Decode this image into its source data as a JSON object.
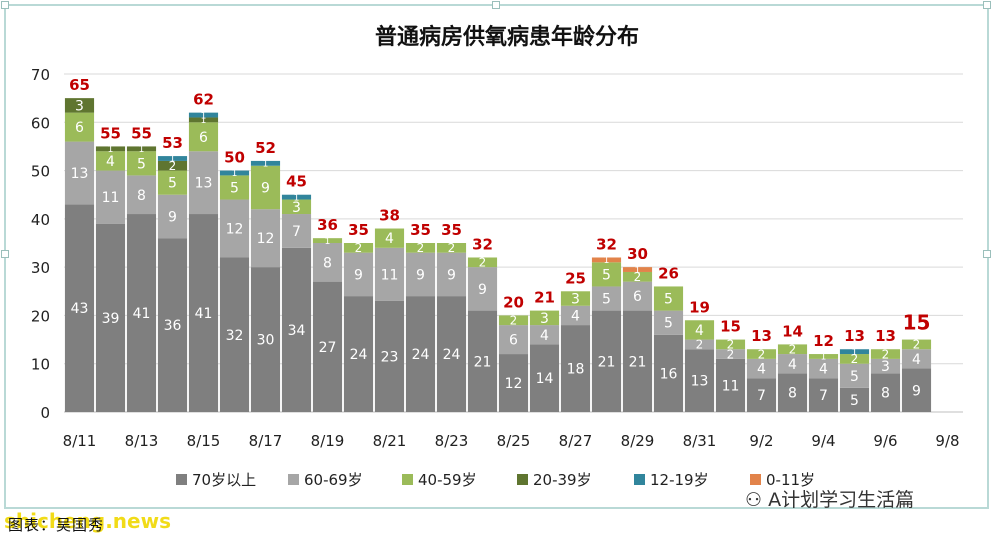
{
  "chart_data": {
    "type": "bar",
    "stacked": true,
    "title": "普通病房供氧病患年龄分布",
    "xlabel": "",
    "ylabel": "",
    "ylim": [
      0,
      70
    ],
    "yticks": [
      0,
      10,
      20,
      30,
      40,
      50,
      60,
      70
    ],
    "grid": true,
    "legend_position": "bottom",
    "categories": [
      "8/11",
      "8/12",
      "8/13",
      "8/14",
      "8/15",
      "8/16",
      "8/17",
      "8/18",
      "8/19",
      "8/20",
      "8/21",
      "8/22",
      "8/23",
      "8/24",
      "8/25",
      "8/26",
      "8/27",
      "8/28",
      "8/29",
      "8/30",
      "8/31",
      "9/1",
      "9/2",
      "9/3",
      "9/4",
      "9/5",
      "9/6",
      "9/7",
      "9/8"
    ],
    "tick_labels": [
      "8/11",
      "",
      "8/13",
      "",
      "8/15",
      "",
      "8/17",
      "",
      "8/19",
      "",
      "8/21",
      "",
      "8/23",
      "",
      "8/25",
      "",
      "8/27",
      "",
      "8/29",
      "",
      "8/31",
      "",
      "9/2",
      "",
      "9/4",
      "",
      "9/6",
      "",
      "9/8"
    ],
    "series": [
      {
        "name": "70岁以上",
        "color": "#7f7f7f",
        "label_color": "#ffffff",
        "values": [
          43,
          39,
          41,
          36,
          41,
          32,
          30,
          34,
          27,
          24,
          23,
          24,
          24,
          21,
          12,
          14,
          18,
          21,
          21,
          16,
          13,
          11,
          7,
          8,
          7,
          5,
          8,
          9,
          null
        ]
      },
      {
        "name": "60-69岁",
        "color": "#a6a6a6",
        "label_color": "#ffffff",
        "values": [
          13,
          11,
          8,
          9,
          13,
          12,
          12,
          7,
          8,
          9,
          11,
          9,
          9,
          9,
          6,
          4,
          4,
          5,
          6,
          5,
          2,
          2,
          4,
          4,
          4,
          5,
          3,
          4,
          null
        ]
      },
      {
        "name": "40-59岁",
        "color": "#9bbb59",
        "label_color": "#ffffff",
        "values": [
          6,
          4,
          5,
          5,
          6,
          5,
          9,
          3,
          1,
          2,
          4,
          2,
          2,
          2,
          2,
          3,
          3,
          5,
          2,
          5,
          4,
          2,
          2,
          2,
          1,
          2,
          2,
          2,
          null
        ]
      },
      {
        "name": "20-39岁",
        "color": "#5f7530",
        "label_color": "#ffffff",
        "values": [
          3,
          1,
          1,
          2,
          1,
          0,
          0,
          0,
          0,
          0,
          0,
          0,
          0,
          0,
          0,
          0,
          0,
          0,
          0,
          0,
          0,
          0,
          0,
          0,
          0,
          0,
          0,
          0,
          null
        ]
      },
      {
        "name": "12-19岁",
        "color": "#31859c",
        "label_color": "#ffffff",
        "values": [
          0,
          0,
          0,
          1,
          1,
          1,
          1,
          1,
          0,
          0,
          0,
          0,
          0,
          0,
          0,
          0,
          0,
          0,
          0,
          0,
          0,
          0,
          0,
          0,
          0,
          1,
          0,
          0,
          null
        ]
      },
      {
        "name": "0-11岁",
        "color": "#e2834a",
        "label_color": "#ffffff",
        "values": [
          0,
          0,
          0,
          0,
          0,
          0,
          0,
          0,
          0,
          0,
          0,
          0,
          0,
          0,
          0,
          0,
          0,
          1,
          1,
          0,
          0,
          0,
          0,
          0,
          0,
          0,
          0,
          0,
          null
        ]
      }
    ],
    "totals": [
      65,
      55,
      55,
      53,
      62,
      50,
      52,
      45,
      36,
      35,
      38,
      35,
      35,
      32,
      20,
      21,
      25,
      32,
      30,
      26,
      19,
      15,
      13,
      14,
      12,
      13,
      13,
      15,
      null
    ],
    "total_label_color": "#c00000"
  },
  "source_text": "图表：吴国秀",
  "watermark": "shicheng.news",
  "wechat_label": "A计划学习生活篇"
}
